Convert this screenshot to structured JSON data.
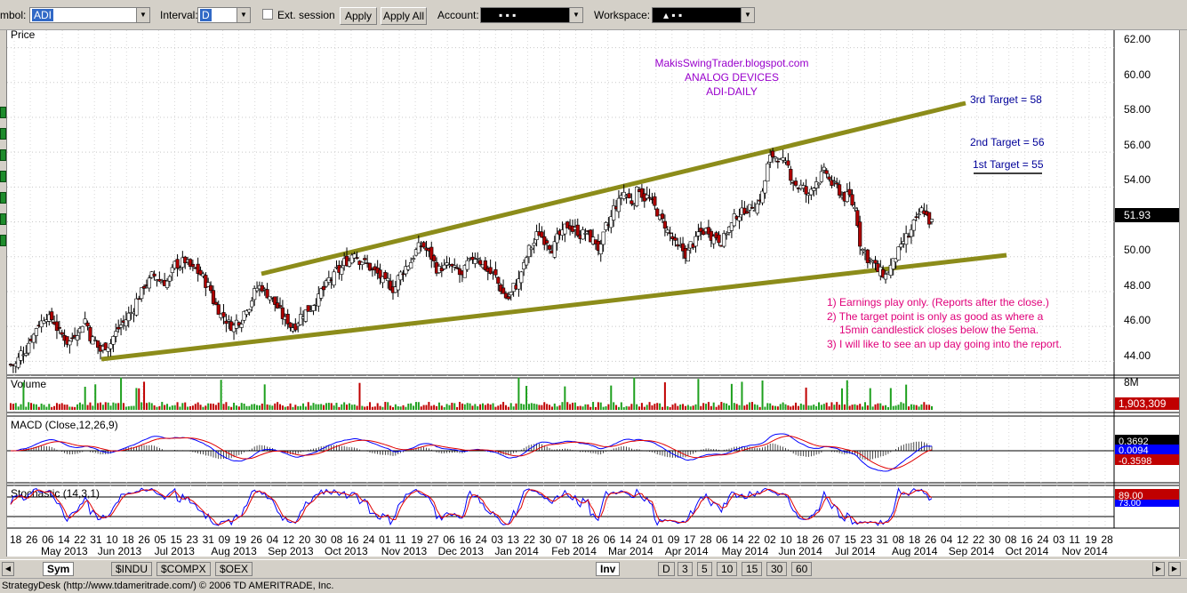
{
  "toolbar": {
    "symbol_label": "mbol:",
    "symbol_value": "ADI",
    "interval_label": "Interval:",
    "interval_value": "D",
    "ext_session_label": "Ext. session",
    "apply_label": "Apply",
    "apply_all_label": "Apply All",
    "account_label": "Account:",
    "account_value": "▪       ▪       ▪",
    "workspace_label": "Workspace:",
    "workspace_value": "▴       ▪       ▪"
  },
  "panels": {
    "price_title": "Price",
    "volume_title": "Volume",
    "macd_title": "MACD (Close,12,26,9)",
    "stoch_title": "Stochastic (14,3,1)"
  },
  "price_axis": {
    "ticks": [
      "62.00",
      "60.00",
      "58.00",
      "56.00",
      "54.00",
      "51.93",
      "50.00",
      "48.00",
      "46.00",
      "44.00"
    ],
    "last_price": "51.93"
  },
  "volume_axis": {
    "top_label": "8M",
    "last_value": "1,903,309"
  },
  "macd_axis": {
    "v1": "0.3692",
    "v2": "0.0094",
    "v3": "-0.3598"
  },
  "stoch_axis": {
    "v1": "89.00",
    "v2": "73.00"
  },
  "annotations": {
    "title_lines": [
      "MakisSwingTrader.blogspot.com",
      "ANALOG DEVICES",
      "ADI-DAILY"
    ],
    "targets": [
      "3rd Target = 58",
      "2nd Target = 56",
      "1st Target = 55"
    ],
    "notes": [
      "1) Earnings play only. (Reports after the close.)",
      "2) The target point is only as good as where a",
      "15min candlestick closes below the 5ema.",
      "3) I will like to see an up day going into the report."
    ]
  },
  "date_axis": {
    "days": [
      "18",
      "26",
      "06",
      "14",
      "22",
      "31",
      "10",
      "18",
      "26",
      "05",
      "15",
      "23",
      "31",
      "09",
      "19",
      "26",
      "04",
      "12",
      "20",
      "30",
      "08",
      "16",
      "24",
      "01",
      "11",
      "19",
      "27",
      "06",
      "16",
      "24",
      "03",
      "13",
      "22",
      "30",
      "07",
      "18",
      "26",
      "06",
      "14",
      "24",
      "01",
      "09",
      "17",
      "28",
      "06",
      "14",
      "22",
      "02",
      "10",
      "18",
      "26",
      "07",
      "15",
      "23",
      "31",
      "08",
      "18",
      "26",
      "04",
      "12",
      "22",
      "30",
      "08",
      "16",
      "24",
      "03",
      "11",
      "19",
      "28"
    ],
    "months": [
      "May 2013",
      "Jun 2013",
      "Jul 2013",
      "Aug 2013",
      "Sep 2013",
      "Oct 2013",
      "Nov 2013",
      "Dec 2013",
      "Jan 2014",
      "Feb 2014",
      "Mar 2014",
      "Apr 2014",
      "May 2014",
      "Jun 2014",
      "Jul 2014",
      "Aug 2014",
      "Sep 2014",
      "Oct 2014",
      "Nov 2014"
    ]
  },
  "chart_data": {
    "type": "candlestick",
    "symbol": "ADI",
    "price_range": [
      43.2,
      63.0
    ],
    "trendlines": [
      {
        "from": {
          "x": "2013-06-03",
          "y": 43.9
        },
        "to": {
          "x": "2014-09-30",
          "y": 49.7
        }
      },
      {
        "from": {
          "x": "2013-08-26",
          "y": 48.6
        },
        "to": {
          "x": "2014-09-26",
          "y": 58.4
        }
      }
    ],
    "closes": [
      43.8,
      44.6,
      45.4,
      46.2,
      46.7,
      46.3,
      45.5,
      45.1,
      45.8,
      46.4,
      45.2,
      44.6,
      45.0,
      45.6,
      46.2,
      46.8,
      47.8,
      48.5,
      48.9,
      48.6,
      48.7,
      49.6,
      49.8,
      49.2,
      49.0,
      48.3,
      47.2,
      46.6,
      46.1,
      46.4,
      47.2,
      47.9,
      48.3,
      47.8,
      47.1,
      46.3,
      46.0,
      46.6,
      47.0,
      47.6,
      48.1,
      48.7,
      49.2,
      49.8,
      50.4,
      49.8,
      49.4,
      49.0,
      48.4,
      48.2,
      49.0,
      49.6,
      50.3,
      50.6,
      50.0,
      49.2,
      49.4,
      49.2,
      48.8,
      49.6,
      50.1,
      49.4,
      49.0,
      48.2,
      47.6,
      48.4,
      49.4,
      50.6,
      51.4,
      51.0,
      50.6,
      51.2,
      51.8,
      51.5,
      51.4,
      50.9,
      50.4,
      51.8,
      53.0,
      53.7,
      53.2,
      54.0,
      53.4,
      52.8,
      52.0,
      51.3,
      50.4,
      50.2,
      50.8,
      51.4,
      51.6,
      51.2,
      51.0,
      51.8,
      52.5,
      52.8,
      53.0,
      53.6,
      55.6,
      55.8,
      55.2,
      54.4,
      54.0,
      53.4,
      54.4,
      54.8,
      54.2,
      53.8,
      53.4,
      52.8,
      50.4,
      49.8,
      49.2,
      48.9,
      49.6,
      50.4,
      51.2,
      52.0,
      52.7,
      51.93
    ]
  }
}
